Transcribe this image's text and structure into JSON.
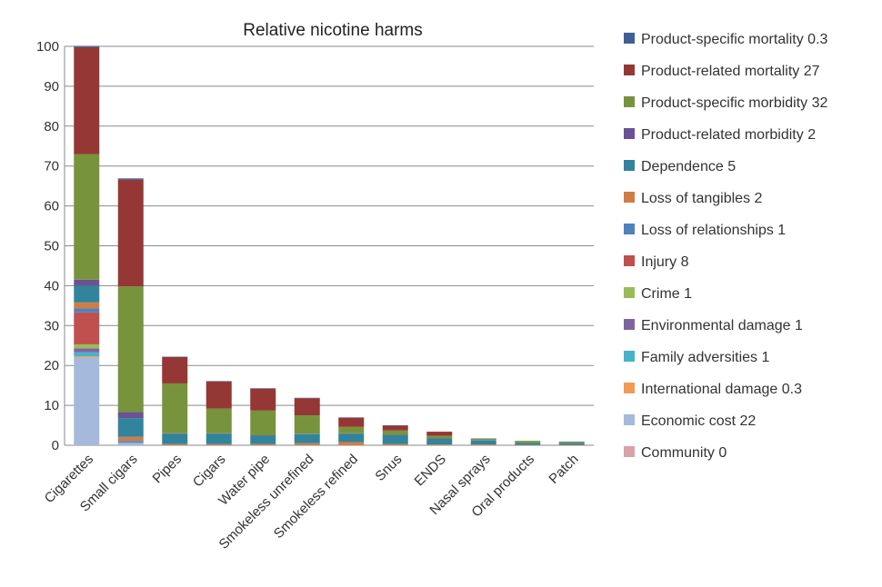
{
  "chart_data": {
    "type": "bar",
    "stacked": true,
    "title": "Relative nicotine harms",
    "categories": [
      "Cigarettes",
      "Small cigars",
      "Pipes",
      "Cigars",
      "Water pipe",
      "Smokeless unrefined",
      "Smokeless refined",
      "Snus",
      "ENDS",
      "Nasal sprays",
      "Oral products",
      "Patch"
    ],
    "ylim": [
      0,
      100
    ],
    "yticks": [
      0,
      10,
      20,
      30,
      40,
      50,
      60,
      70,
      80,
      90,
      100
    ],
    "grid": true,
    "legend_position": "right",
    "series": [
      {
        "name": "Community 0",
        "color": "#d9a1a8",
        "values": [
          0,
          0,
          0,
          0,
          0,
          0,
          0,
          0,
          0,
          0,
          0,
          0
        ]
      },
      {
        "name": "Economic cost 22",
        "color": "#a5b9dc",
        "values": [
          22,
          0.5,
          0,
          0,
          0,
          0,
          0,
          0,
          0,
          0,
          0,
          0
        ]
      },
      {
        "name": "International damage 0.3",
        "color": "#f59a53",
        "values": [
          0.3,
          0,
          0,
          0,
          0,
          0,
          0,
          0,
          0,
          0,
          0,
          0
        ]
      },
      {
        "name": "Family adversities 1",
        "color": "#45b3cc",
        "values": [
          1,
          0.2,
          0,
          0,
          0,
          0,
          0,
          0,
          0,
          0,
          0,
          0
        ]
      },
      {
        "name": "Environmental damage 1",
        "color": "#8064a2",
        "values": [
          1,
          0.2,
          0,
          0,
          0,
          0,
          0,
          0,
          0,
          0,
          0,
          0
        ]
      },
      {
        "name": "Crime 1",
        "color": "#9bbb59",
        "values": [
          1,
          0,
          0,
          0,
          0,
          0,
          0,
          0,
          0,
          0,
          0,
          0
        ]
      },
      {
        "name": "Injury 8",
        "color": "#c0504d",
        "values": [
          8,
          0,
          0,
          0,
          0,
          0,
          0,
          0,
          0,
          0,
          0,
          0
        ]
      },
      {
        "name": "Loss of relationships 1",
        "color": "#4f81bd",
        "values": [
          1,
          0.2,
          0,
          0,
          0,
          0,
          0,
          0,
          0,
          0,
          0,
          0
        ]
      },
      {
        "name": "Loss of tangibles 2",
        "color": "#d07d45",
        "values": [
          1.5,
          1,
          0.3,
          0.3,
          0.3,
          0.5,
          0.8,
          0.3,
          0.2,
          0.2,
          0.1,
          0.1
        ]
      },
      {
        "name": "Dependence 5",
        "color": "#31849b",
        "values": [
          4.2,
          4.7,
          2.6,
          2.6,
          2.1,
          2.3,
          2.1,
          2.2,
          1.4,
          1.0,
          0.5,
          0.4
        ]
      },
      {
        "name": "Product-related morbidity 2",
        "color": "#6a5294",
        "values": [
          1.5,
          1.5,
          0.1,
          0.1,
          0.1,
          0.1,
          0.1,
          0.1,
          0.1,
          0.1,
          0,
          0
        ]
      },
      {
        "name": "Product-specific morbidity 32",
        "color": "#77933c",
        "values": [
          31.5,
          31.5,
          12.5,
          6.2,
          6.2,
          4.6,
          1.6,
          1.1,
          0.7,
          0.3,
          0.5,
          0.3
        ]
      },
      {
        "name": "Product-related mortality 27",
        "color": "#953735",
        "values": [
          26.8,
          26.8,
          6.6,
          6.8,
          5.5,
          4.3,
          2.3,
          1.2,
          1.0,
          0,
          0,
          0
        ]
      },
      {
        "name": "Product-specific mortality 0.3",
        "color": "#3f6096",
        "values": [
          0.3,
          0.3,
          0.1,
          0.1,
          0.1,
          0.1,
          0.1,
          0.1,
          0,
          0.1,
          0,
          0.1
        ]
      }
    ],
    "legend_order": [
      13,
      12,
      11,
      10,
      9,
      8,
      7,
      6,
      5,
      4,
      3,
      2,
      1,
      0
    ]
  }
}
